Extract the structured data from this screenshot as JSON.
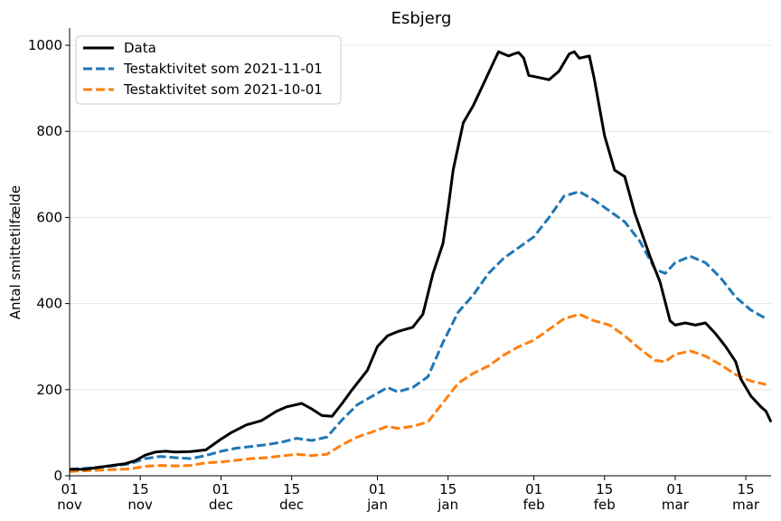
{
  "chart_data": {
    "type": "line",
    "title": "Esbjerg",
    "xlabel": "",
    "ylabel": "Antal smittetilfælde",
    "x_domain": [
      "2021-11-01",
      "2022-03-20"
    ],
    "ylim": [
      0,
      1040
    ],
    "grid": {
      "y": true,
      "x": false
    },
    "legend": "top-left",
    "y_ticks": [
      0,
      200,
      400,
      600,
      800,
      1000
    ],
    "x_ticks": [
      {
        "date": "2021-11-01",
        "day": "01",
        "month": "nov"
      },
      {
        "date": "2021-11-15",
        "day": "15",
        "month": "nov"
      },
      {
        "date": "2021-12-01",
        "day": "01",
        "month": "dec"
      },
      {
        "date": "2021-12-15",
        "day": "15",
        "month": "dec"
      },
      {
        "date": "2022-01-01",
        "day": "01",
        "month": "jan"
      },
      {
        "date": "2022-01-15",
        "day": "15",
        "month": "jan"
      },
      {
        "date": "2022-02-01",
        "day": "01",
        "month": "feb"
      },
      {
        "date": "2022-02-15",
        "day": "15",
        "month": "feb"
      },
      {
        "date": "2022-03-01",
        "day": "01",
        "month": "mar"
      },
      {
        "date": "2022-03-15",
        "day": "15",
        "month": "mar"
      }
    ],
    "series": [
      {
        "name": "Data",
        "color": "#000000",
        "dash": "solid",
        "points": [
          [
            "2021-11-01",
            15
          ],
          [
            "2021-11-04",
            15
          ],
          [
            "2021-11-07",
            20
          ],
          [
            "2021-11-10",
            25
          ],
          [
            "2021-11-12",
            28
          ],
          [
            "2021-11-14",
            35
          ],
          [
            "2021-11-16",
            48
          ],
          [
            "2021-11-18",
            55
          ],
          [
            "2021-11-20",
            57
          ],
          [
            "2021-11-22",
            55
          ],
          [
            "2021-11-25",
            56
          ],
          [
            "2021-11-28",
            60
          ],
          [
            "2021-12-01",
            85
          ],
          [
            "2021-12-03",
            100
          ],
          [
            "2021-12-06",
            118
          ],
          [
            "2021-12-09",
            128
          ],
          [
            "2021-12-12",
            150
          ],
          [
            "2021-12-14",
            160
          ],
          [
            "2021-12-17",
            168
          ],
          [
            "2021-12-19",
            155
          ],
          [
            "2021-12-21",
            140
          ],
          [
            "2021-12-23",
            138
          ],
          [
            "2021-12-25",
            168
          ],
          [
            "2021-12-27",
            200
          ],
          [
            "2021-12-30",
            245
          ],
          [
            "2022-01-01",
            300
          ],
          [
            "2022-01-03",
            325
          ],
          [
            "2022-01-05",
            335
          ],
          [
            "2022-01-08",
            345
          ],
          [
            "2022-01-10",
            375
          ],
          [
            "2022-01-12",
            470
          ],
          [
            "2022-01-14",
            540
          ],
          [
            "2022-01-15",
            620
          ],
          [
            "2022-01-16",
            710
          ],
          [
            "2022-01-18",
            820
          ],
          [
            "2022-01-20",
            860
          ],
          [
            "2022-01-22",
            910
          ],
          [
            "2022-01-24",
            960
          ],
          [
            "2022-01-25",
            985
          ],
          [
            "2022-01-27",
            975
          ],
          [
            "2022-01-28",
            980
          ],
          [
            "2022-01-29",
            983
          ],
          [
            "2022-01-30",
            970
          ],
          [
            "2022-01-31",
            930
          ],
          [
            "2022-02-02",
            925
          ],
          [
            "2022-02-04",
            920
          ],
          [
            "2022-02-06",
            940
          ],
          [
            "2022-02-08",
            980
          ],
          [
            "2022-02-09",
            985
          ],
          [
            "2022-02-10",
            970
          ],
          [
            "2022-02-12",
            975
          ],
          [
            "2022-02-13",
            920
          ],
          [
            "2022-02-15",
            790
          ],
          [
            "2022-02-17",
            710
          ],
          [
            "2022-02-19",
            695
          ],
          [
            "2022-02-21",
            610
          ],
          [
            "2022-02-24",
            510
          ],
          [
            "2022-02-26",
            450
          ],
          [
            "2022-02-28",
            360
          ],
          [
            "2022-03-01",
            350
          ],
          [
            "2022-03-03",
            355
          ],
          [
            "2022-03-05",
            350
          ],
          [
            "2022-03-07",
            355
          ],
          [
            "2022-03-09",
            330
          ],
          [
            "2022-03-11",
            300
          ],
          [
            "2022-03-13",
            265
          ],
          [
            "2022-03-14",
            225
          ],
          [
            "2022-03-16",
            185
          ],
          [
            "2022-03-18",
            160
          ],
          [
            "2022-03-19",
            150
          ],
          [
            "2022-03-20",
            125
          ]
        ]
      },
      {
        "name": "Testaktivitet som 2021-11-01",
        "color": "#1f77b4",
        "dash": "dashed",
        "points": [
          [
            "2021-11-01",
            15
          ],
          [
            "2021-11-05",
            18
          ],
          [
            "2021-11-09",
            22
          ],
          [
            "2021-11-13",
            28
          ],
          [
            "2021-11-16",
            40
          ],
          [
            "2021-11-19",
            45
          ],
          [
            "2021-11-22",
            42
          ],
          [
            "2021-11-25",
            40
          ],
          [
            "2021-11-28",
            47
          ],
          [
            "2021-12-01",
            57
          ],
          [
            "2021-12-04",
            64
          ],
          [
            "2021-12-07",
            68
          ],
          [
            "2021-12-10",
            72
          ],
          [
            "2021-12-13",
            78
          ],
          [
            "2021-12-16",
            87
          ],
          [
            "2021-12-19",
            82
          ],
          [
            "2021-12-22",
            90
          ],
          [
            "2021-12-25",
            130
          ],
          [
            "2021-12-28",
            165
          ],
          [
            "2021-12-31",
            185
          ],
          [
            "2022-01-03",
            205
          ],
          [
            "2022-01-05",
            195
          ],
          [
            "2022-01-08",
            205
          ],
          [
            "2022-01-11",
            230
          ],
          [
            "2022-01-14",
            310
          ],
          [
            "2022-01-17",
            380
          ],
          [
            "2022-01-20",
            420
          ],
          [
            "2022-01-23",
            470
          ],
          [
            "2022-01-26",
            505
          ],
          [
            "2022-01-29",
            530
          ],
          [
            "2022-02-01",
            555
          ],
          [
            "2022-02-04",
            600
          ],
          [
            "2022-02-07",
            650
          ],
          [
            "2022-02-10",
            660
          ],
          [
            "2022-02-13",
            640
          ],
          [
            "2022-02-16",
            615
          ],
          [
            "2022-02-19",
            590
          ],
          [
            "2022-02-22",
            545
          ],
          [
            "2022-02-25",
            480
          ],
          [
            "2022-02-27",
            470
          ],
          [
            "2022-03-01",
            495
          ],
          [
            "2022-03-04",
            510
          ],
          [
            "2022-03-07",
            495
          ],
          [
            "2022-03-10",
            460
          ],
          [
            "2022-03-13",
            415
          ],
          [
            "2022-03-16",
            385
          ],
          [
            "2022-03-19",
            365
          ]
        ]
      },
      {
        "name": "Testaktivitet som 2021-10-01",
        "color": "#ff7f0e",
        "dash": "dashed",
        "points": [
          [
            "2021-11-01",
            10
          ],
          [
            "2021-11-05",
            12
          ],
          [
            "2021-11-09",
            14
          ],
          [
            "2021-11-13",
            16
          ],
          [
            "2021-11-16",
            22
          ],
          [
            "2021-11-19",
            24
          ],
          [
            "2021-11-22",
            23
          ],
          [
            "2021-11-25",
            24
          ],
          [
            "2021-11-28",
            30
          ],
          [
            "2021-12-01",
            32
          ],
          [
            "2021-12-04",
            36
          ],
          [
            "2021-12-07",
            40
          ],
          [
            "2021-12-10",
            42
          ],
          [
            "2021-12-13",
            46
          ],
          [
            "2021-12-16",
            50
          ],
          [
            "2021-12-19",
            47
          ],
          [
            "2021-12-22",
            50
          ],
          [
            "2021-12-25",
            72
          ],
          [
            "2021-12-28",
            90
          ],
          [
            "2021-12-31",
            102
          ],
          [
            "2022-01-03",
            115
          ],
          [
            "2022-01-05",
            110
          ],
          [
            "2022-01-08",
            115
          ],
          [
            "2022-01-11",
            125
          ],
          [
            "2022-01-14",
            170
          ],
          [
            "2022-01-17",
            215
          ],
          [
            "2022-01-20",
            238
          ],
          [
            "2022-01-23",
            255
          ],
          [
            "2022-01-26",
            280
          ],
          [
            "2022-01-29",
            300
          ],
          [
            "2022-02-01",
            315
          ],
          [
            "2022-02-04",
            340
          ],
          [
            "2022-02-07",
            365
          ],
          [
            "2022-02-10",
            375
          ],
          [
            "2022-02-13",
            360
          ],
          [
            "2022-02-16",
            350
          ],
          [
            "2022-02-19",
            325
          ],
          [
            "2022-02-22",
            295
          ],
          [
            "2022-02-25",
            268
          ],
          [
            "2022-02-27",
            265
          ],
          [
            "2022-03-01",
            282
          ],
          [
            "2022-03-04",
            290
          ],
          [
            "2022-03-07",
            278
          ],
          [
            "2022-03-10",
            258
          ],
          [
            "2022-03-13",
            235
          ],
          [
            "2022-03-16",
            220
          ],
          [
            "2022-03-19",
            212
          ]
        ]
      }
    ]
  }
}
